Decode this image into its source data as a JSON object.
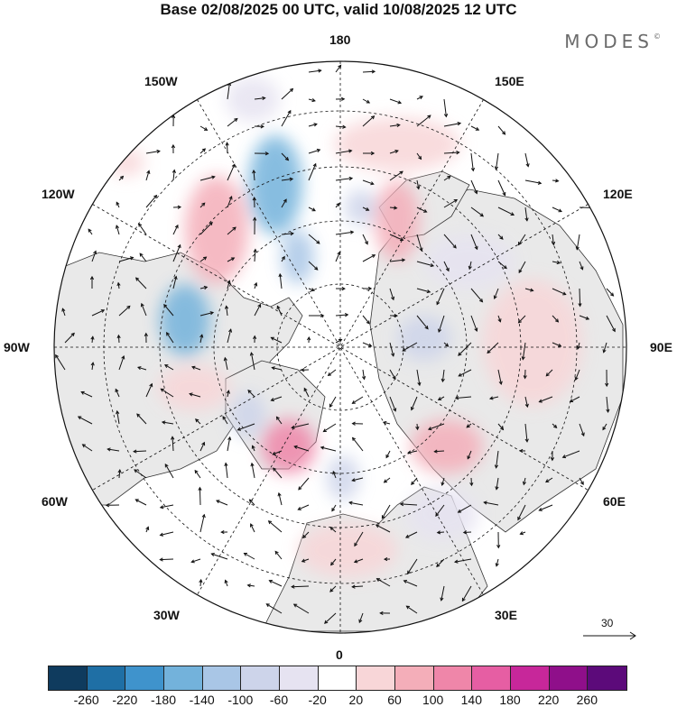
{
  "title": "Base 02/08/2025 00 UTC, valid 10/08/2025 12 UTC",
  "brand": "MODES",
  "brand_mark": "©",
  "projection": "north-polar-stereographic",
  "longitude_labels": {
    "top": "180",
    "top_left": "150W",
    "top_right": "150E",
    "upper_left": "120W",
    "upper_right": "120E",
    "left": "90W",
    "right": "90E",
    "lower_left": "60W",
    "lower_right": "60E",
    "bottom_left": "30W",
    "bottom_right": "30E",
    "bottom": "0"
  },
  "reference_vector": {
    "label": "30",
    "value": 30
  },
  "colorbar": {
    "colors": [
      "#0f3b5e",
      "#1f6fa5",
      "#3f93cc",
      "#73b2db",
      "#a9c6e6",
      "#cdd4ea",
      "#e6e3f1",
      "#ffffff",
      "#f8d6d8",
      "#f4aeb9",
      "#ef86a9",
      "#e65ea3",
      "#c7279a",
      "#8f0f8a",
      "#5c0a7a"
    ],
    "tick_labels": [
      "-260",
      "-220",
      "-180",
      "-140",
      "-100",
      "-60",
      "-20",
      "20",
      "60",
      "100",
      "140",
      "180",
      "220",
      "260"
    ]
  },
  "anomaly_blobs": [
    {
      "lon": -165,
      "lat": 58,
      "value": -140
    },
    {
      "lon": -130,
      "lat": 62,
      "value": 100
    },
    {
      "lon": -100,
      "lat": 58,
      "value": -140
    },
    {
      "lon": -150,
      "lat": 72,
      "value": -100
    },
    {
      "lon": -30,
      "lat": 55,
      "value": 140
    },
    {
      "lon": -10,
      "lat": 55,
      "value": -60
    },
    {
      "lon": 170,
      "lat": 55,
      "value": 60
    },
    {
      "lon": 150,
      "lat": 72,
      "value": 60
    },
    {
      "lon": 120,
      "lat": 75,
      "value": -60
    },
    {
      "lon": 85,
      "lat": 45,
      "value": 60
    },
    {
      "lon": 60,
      "lat": 60,
      "value": 100
    },
    {
      "lon": 10,
      "lat": 42,
      "value": 60
    },
    {
      "lon": 40,
      "lat": 60,
      "value": -60
    },
    {
      "lon": 100,
      "lat": 60,
      "value": -60
    },
    {
      "lon": -60,
      "lat": 55,
      "value": 60
    },
    {
      "lon": 25,
      "lat": 75,
      "value": 60
    }
  ]
}
